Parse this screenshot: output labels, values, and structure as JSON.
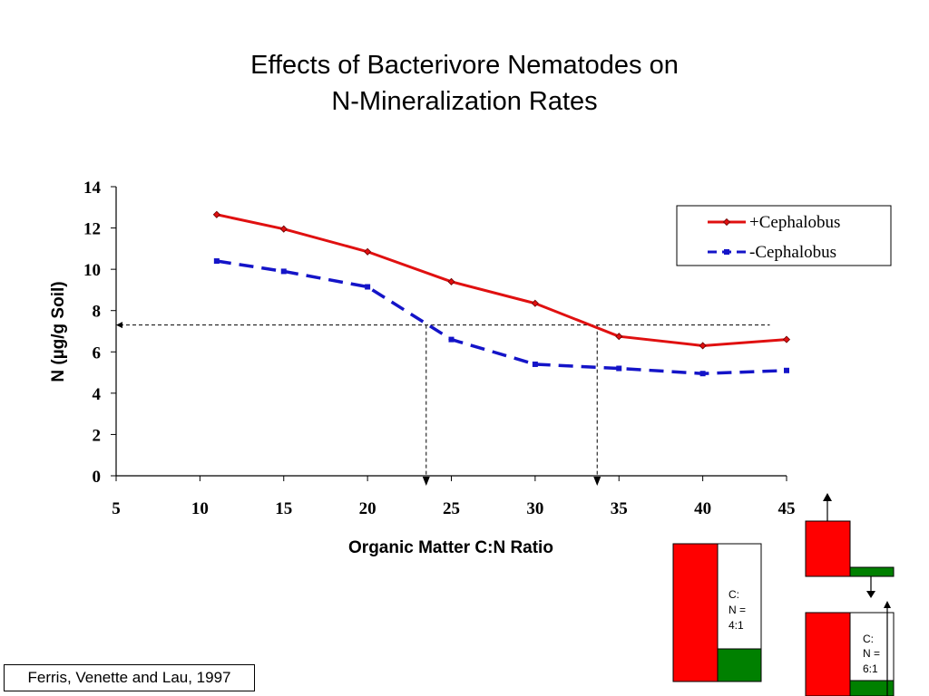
{
  "chart_data": {
    "type": "line",
    "title_lines": [
      "Effects of Bacterivore Nematodes on",
      "N-Mineralization Rates"
    ],
    "xlabel": "Organic Matter C:N Ratio",
    "ylabel": "N (µg/g Soil)",
    "xlim": [
      5,
      45
    ],
    "ylim": [
      0,
      14
    ],
    "x_ticks": [
      5,
      10,
      15,
      20,
      25,
      30,
      35,
      40,
      45
    ],
    "y_ticks": [
      0,
      2,
      4,
      6,
      8,
      10,
      12,
      14
    ],
    "x_tick_labels": [
      "5",
      "10",
      "15",
      "20",
      "25",
      "30",
      "35",
      "40",
      "45"
    ],
    "y_tick_labels": [
      "0",
      "2",
      "4",
      "6",
      "8",
      "10",
      "12",
      "14"
    ],
    "grid": false,
    "legend_position": "top-right",
    "series": [
      {
        "name": "+Cephalobus",
        "color": "#e01010",
        "line_style": "solid",
        "marker": "diamond",
        "x": [
          11,
          15,
          20,
          25,
          30,
          35,
          40,
          45
        ],
        "y": [
          12.65,
          11.95,
          10.85,
          9.4,
          8.35,
          6.75,
          6.3,
          6.6
        ]
      },
      {
        "name": "-Cephalobus",
        "color": "#1414c8",
        "line_style": "dashed",
        "marker": "square",
        "x": [
          11,
          15,
          20,
          25,
          30,
          35,
          40,
          45
        ],
        "y": [
          10.4,
          9.9,
          9.15,
          6.6,
          5.4,
          5.2,
          4.95,
          5.1
        ]
      }
    ],
    "annotations": {
      "reference_y": 7.3,
      "reference_x": [
        23.5,
        33.7
      ]
    }
  },
  "diagram": {
    "box1_label": [
      "C:",
      "N =",
      "4:1"
    ],
    "box2_label": [
      "C:",
      "N =",
      "6:1"
    ]
  },
  "citation": "Ferris, Venette and Lau, 1997",
  "colors": {
    "red_block": "#ff0000",
    "green_block": "#008000"
  }
}
